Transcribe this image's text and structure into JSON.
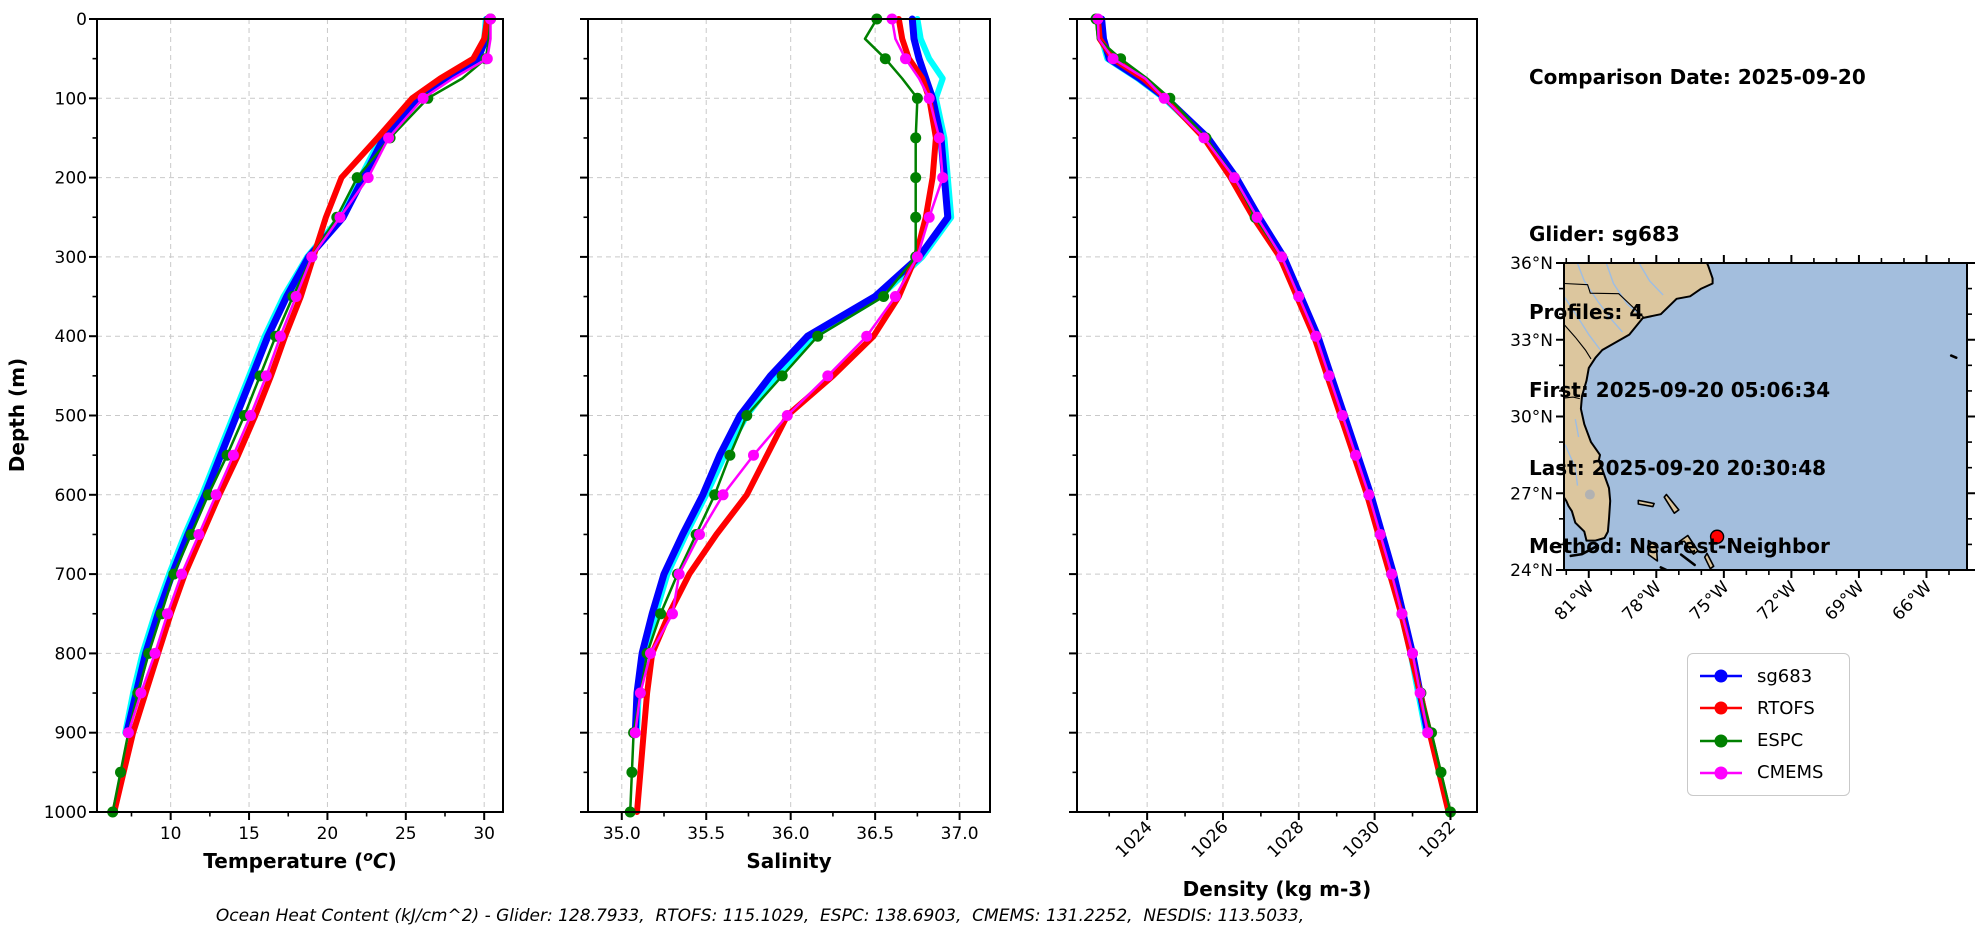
{
  "info": {
    "title": "Comparison Date: 2025-09-20",
    "lines": [
      "Glider: sg683",
      "Profiles: 4",
      "First: 2025-09-20 05:06:34",
      "Last: 2025-09-20 20:30:48",
      "Method: Nearest-Neighbor"
    ]
  },
  "caption": "Ocean Heat Content (kJ/cm^2) - Glider: 128.7933,  RTOFS: 115.1029,  ESPC: 138.6903,  CMEMS: 131.2252,  NESDIS: 113.5033,",
  "legend": {
    "entries": [
      {
        "label": "sg683",
        "color": "#0000ff"
      },
      {
        "label": "RTOFS",
        "color": "#ff0000"
      },
      {
        "label": "ESPC",
        "color": "#008000"
      },
      {
        "label": "CMEMS",
        "color": "#ff00ff"
      }
    ]
  },
  "chart_data": {
    "type": "line",
    "depth_axis": {
      "label": "Depth (m)",
      "lim": [
        0,
        1000
      ],
      "ticks": [
        0,
        100,
        200,
        300,
        400,
        500,
        600,
        700,
        800,
        900,
        1000
      ],
      "tick_labels": [
        "0",
        "100",
        "200",
        "300",
        "400",
        "500",
        "600",
        "700",
        "800",
        "900",
        "1000"
      ],
      "minor_step": 50
    },
    "depths": [
      0,
      25,
      50,
      75,
      100,
      150,
      200,
      250,
      300,
      350,
      400,
      450,
      500,
      550,
      600,
      650,
      700,
      750,
      800,
      850,
      900,
      950,
      1000
    ],
    "panels": [
      {
        "id": "temperature",
        "xlabel": "Temperature (^oC)",
        "xlim": [
          5.3,
          31.2
        ],
        "xticks": [
          10,
          15,
          20,
          25,
          30
        ],
        "xtick_labels": [
          "10",
          "15",
          "20",
          "25",
          "30"
        ],
        "xminor_step": 2.5,
        "rotate_xtick_labels": false,
        "series": [
          {
            "name": "sg683-raw",
            "color": "#00ffff",
            "lw": 6,
            "marker": 0,
            "in_legend": false,
            "values": [
              30.1,
              30.0,
              29.5,
              27.4,
              25.6,
              23.4,
              22.1,
              20.8,
              18.7,
              17.2,
              16.0,
              15.0,
              14.0,
              13.0,
              12.0,
              10.9,
              9.9,
              9.0,
              8.2,
              7.6,
              7.1,
              null,
              null
            ]
          },
          {
            "name": "sg683",
            "color": "#0000ff",
            "lw": 7,
            "marker": 0,
            "in_legend": true,
            "values": [
              30.2,
              30.1,
              29.6,
              27.6,
              25.8,
              23.6,
              22.3,
              21.0,
              18.8,
              17.4,
              16.2,
              15.2,
              14.2,
              13.2,
              12.2,
              11.1,
              10.1,
              9.2,
              8.4,
              7.8,
              7.2,
              null,
              null
            ]
          },
          {
            "name": "RTOFS",
            "color": "#ff0000",
            "lw": 6,
            "marker": 0,
            "in_legend": true,
            "values": [
              30.2,
              30.0,
              29.3,
              27.2,
              25.4,
              23.2,
              20.9,
              19.9,
              19.1,
              18.3,
              17.3,
              16.4,
              15.4,
              14.3,
              13.1,
              12.0,
              10.9,
              10.0,
              9.2,
              8.4,
              7.6,
              7.0,
              6.4
            ]
          },
          {
            "name": "ESPC",
            "color": "#008000",
            "lw": 2.5,
            "marker": 5.5,
            "in_legend": true,
            "values": [
              30.4,
              30.3,
              30.1,
              28.6,
              26.4,
              24.0,
              21.9,
              20.6,
              19.0,
              17.8,
              16.7,
              15.7,
              14.7,
              13.6,
              12.4,
              11.3,
              10.2,
              9.4,
              8.6,
              7.9,
              7.3,
              6.8,
              6.3
            ]
          },
          {
            "name": "CMEMS",
            "color": "#ff00ff",
            "lw": 2.5,
            "marker": 5.5,
            "in_legend": true,
            "values": [
              30.4,
              30.4,
              30.2,
              28.0,
              26.1,
              23.9,
              22.6,
              20.8,
              19.0,
              18.0,
              17.0,
              16.1,
              15.1,
              14.0,
              12.9,
              11.8,
              10.7,
              9.8,
              9.0,
              8.1,
              7.3,
              null,
              null
            ]
          }
        ]
      },
      {
        "id": "salinity",
        "xlabel": "Salinity",
        "xlim": [
          34.8,
          37.18
        ],
        "xticks": [
          35.0,
          35.5,
          36.0,
          36.5,
          37.0
        ],
        "xtick_labels": [
          "35.0",
          "35.5",
          "36.0",
          "36.5",
          "37.0"
        ],
        "xminor_step": 0.25,
        "rotate_xtick_labels": false,
        "series": [
          {
            "name": "sg683-raw",
            "color": "#00ffff",
            "lw": 6,
            "marker": 0,
            "in_legend": false,
            "values": [
              36.75,
              36.77,
              36.82,
              36.9,
              36.86,
              36.91,
              36.93,
              36.95,
              36.78,
              36.53,
              36.14,
              35.92,
              35.74,
              35.61,
              35.5,
              35.38,
              35.27,
              35.2,
              35.14,
              35.1,
              35.09,
              null,
              null
            ]
          },
          {
            "name": "sg683",
            "color": "#0000ff",
            "lw": 7,
            "marker": 0,
            "in_legend": true,
            "values": [
              36.72,
              36.73,
              36.76,
              36.8,
              36.84,
              36.89,
              36.91,
              36.93,
              36.76,
              36.5,
              36.1,
              35.88,
              35.7,
              35.58,
              35.48,
              35.36,
              35.25,
              35.18,
              35.12,
              35.09,
              35.08,
              null,
              null
            ]
          },
          {
            "name": "RTOFS",
            "color": "#ff0000",
            "lw": 6,
            "marker": 0,
            "in_legend": true,
            "values": [
              36.64,
              36.66,
              36.7,
              36.78,
              36.82,
              36.86,
              36.84,
              36.8,
              36.74,
              36.64,
              36.49,
              36.25,
              35.98,
              35.86,
              35.74,
              35.56,
              35.4,
              35.28,
              35.18,
              35.15,
              35.13,
              35.11,
              35.09
            ]
          },
          {
            "name": "ESPC",
            "color": "#008000",
            "lw": 2.5,
            "marker": 5.5,
            "in_legend": true,
            "values": [
              36.51,
              36.44,
              36.56,
              36.66,
              36.75,
              36.74,
              36.74,
              36.74,
              36.74,
              36.55,
              36.16,
              35.95,
              35.74,
              35.64,
              35.55,
              35.44,
              35.33,
              35.23,
              35.15,
              35.11,
              35.07,
              35.06,
              35.05
            ]
          },
          {
            "name": "CMEMS",
            "color": "#ff00ff",
            "lw": 2.5,
            "marker": 5.5,
            "in_legend": true,
            "values": [
              36.6,
              36.62,
              36.68,
              36.76,
              36.82,
              36.88,
              36.9,
              36.82,
              36.75,
              36.62,
              36.45,
              36.22,
              35.98,
              35.78,
              35.6,
              35.46,
              35.34,
              35.3,
              35.17,
              35.11,
              35.08,
              null,
              null
            ]
          }
        ]
      },
      {
        "id": "density",
        "xlabel": "Density (kg m-3)",
        "xlim": [
          1022.15,
          1032.7
        ],
        "xticks": [
          1024,
          1026,
          1028,
          1030,
          1032
        ],
        "xtick_labels": [
          "1024",
          "1026",
          "1028",
          "1030",
          "1032"
        ],
        "xminor_step": 1,
        "rotate_xtick_labels": true,
        "series": [
          {
            "name": "sg683-raw",
            "color": "#00ffff",
            "lw": 6,
            "marker": 0,
            "in_legend": false,
            "values": [
              1022.75,
              1022.8,
              1022.95,
              1023.75,
              1024.45,
              1025.55,
              1026.3,
              1026.9,
              1027.55,
              1028.0,
              1028.45,
              1028.8,
              1029.15,
              1029.5,
              1029.85,
              1030.15,
              1030.45,
              1030.7,
              1030.95,
              1031.15,
              1031.35,
              null,
              null
            ]
          },
          {
            "name": "sg683",
            "color": "#0000ff",
            "lw": 7,
            "marker": 0,
            "in_legend": true,
            "values": [
              1022.8,
              1022.85,
              1023.0,
              1023.8,
              1024.5,
              1025.6,
              1026.35,
              1026.95,
              1027.6,
              1028.05,
              1028.5,
              1028.85,
              1029.2,
              1029.55,
              1029.9,
              1030.2,
              1030.5,
              1030.75,
              1031.0,
              1031.2,
              1031.4,
              null,
              null
            ]
          },
          {
            "name": "RTOFS",
            "color": "#ff0000",
            "lw": 6,
            "marker": 0,
            "in_legend": true,
            "values": [
              1022.7,
              1022.75,
              1023.1,
              1023.9,
              1024.5,
              1025.5,
              1026.2,
              1026.8,
              1027.5,
              1027.95,
              1028.4,
              1028.75,
              1029.1,
              1029.45,
              1029.8,
              1030.1,
              1030.4,
              1030.7,
              1030.95,
              1031.2,
              1031.45,
              1031.7,
              1031.95
            ]
          },
          {
            "name": "ESPC",
            "color": "#008000",
            "lw": 2.5,
            "marker": 5.5,
            "in_legend": true,
            "values": [
              1022.65,
              1022.7,
              1023.3,
              1024.0,
              1024.6,
              1025.55,
              1026.3,
              1026.85,
              1027.55,
              1028.0,
              1028.45,
              1028.8,
              1029.15,
              1029.5,
              1029.85,
              1030.15,
              1030.45,
              1030.72,
              1031.0,
              1031.22,
              1031.5,
              1031.75,
              1032.0
            ]
          },
          {
            "name": "CMEMS",
            "color": "#ff00ff",
            "lw": 2.5,
            "marker": 5.5,
            "in_legend": true,
            "values": [
              1022.7,
              1022.72,
              1023.1,
              1023.95,
              1024.45,
              1025.5,
              1026.3,
              1026.9,
              1027.55,
              1028.0,
              1028.45,
              1028.8,
              1029.15,
              1029.5,
              1029.85,
              1030.15,
              1030.45,
              1030.72,
              1031.0,
              1031.2,
              1031.4,
              null,
              null
            ]
          }
        ]
      }
    ]
  },
  "map": {
    "extent": {
      "lon_min": -82.1,
      "lon_max": -64.2,
      "lat_min": 24,
      "lat_max": 36
    },
    "lat_ticks": [
      {
        "value": 24,
        "label": "24°N"
      },
      {
        "value": 27,
        "label": "27°N"
      },
      {
        "value": 30,
        "label": "30°N"
      },
      {
        "value": 33,
        "label": "33°N"
      },
      {
        "value": 36,
        "label": "36°N"
      }
    ],
    "lon_ticks": [
      {
        "value": -81,
        "label": "81°W"
      },
      {
        "value": -78,
        "label": "78°W"
      },
      {
        "value": -75,
        "label": "75°W"
      },
      {
        "value": -72,
        "label": "72°W"
      },
      {
        "value": -69,
        "label": "69°W"
      },
      {
        "value": -66,
        "label": "66°W"
      }
    ],
    "minor_step": 1,
    "colors": {
      "ocean": "#a3bedd",
      "land": "#dcc69e",
      "coast": "#000000",
      "river": "#9dbde4",
      "lake": "#b2b2b2"
    },
    "marker": {
      "lon": -75.3,
      "lat": 25.3,
      "color": "#ff0000"
    }
  }
}
